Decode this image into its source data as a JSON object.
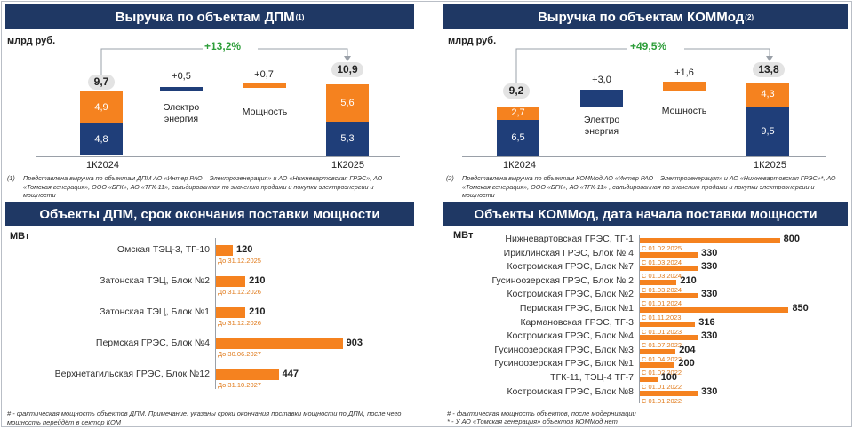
{
  "colors": {
    "navy": "#1f3864",
    "orange": "#f5821f",
    "blue": "#1f3e79",
    "green": "#2e9e3a",
    "gray": "#e3e3e3"
  },
  "dpm_revenue": {
    "title": "Выручка по объектам ДПМ",
    "title_sup": "(1)",
    "unit": "млрд руб.",
    "growth": "+13,2%",
    "chart_data": {
      "type": "bar",
      "categories": [
        "1К2024",
        "1К2025"
      ],
      "series": [
        {
          "name": "Электроэнергия",
          "values": [
            4.8,
            5.3
          ]
        },
        {
          "name": "Мощность",
          "values": [
            4.9,
            5.6
          ]
        }
      ],
      "totals": [
        9.7,
        10.9
      ],
      "bridge": [
        {
          "label": "Электро энергия",
          "delta": 0.5
        },
        {
          "label": "Мощность",
          "delta": 0.7
        }
      ]
    },
    "labels": {
      "cat1": "1К2024",
      "cat2": "1К2025",
      "total1": "9,7",
      "total2": "10,9",
      "b1_orange": "4,9",
      "b1_navy": "4,8",
      "b2_orange": "5,6",
      "b2_navy": "5,3",
      "delta1": "+0,5",
      "delta2": "+0,7",
      "legend1_line1": "Электро",
      "legend1_line2": "энергия",
      "legend2": "Мощность"
    },
    "footnote_num": "(1)",
    "footnote": "Представлена выручка по объектам ДПМ АО «Интер РАО – Электрогенерация» и АО «Нижневартовская ГРЭС», АО «Томская генерация», ООО «БГК», АО «ТГК-11», сальдированная по значению продажи и покупки электроэнергии и мощности"
  },
  "kommod_revenue": {
    "title": "Выручка по объектам КОММод",
    "title_sup": "(2)",
    "unit": "млрд руб.",
    "growth": "+49,5%",
    "chart_data": {
      "type": "bar",
      "categories": [
        "1К2024",
        "1К2025"
      ],
      "series": [
        {
          "name": "Электроэнергия",
          "values": [
            6.5,
            9.5
          ]
        },
        {
          "name": "Мощность",
          "values": [
            2.7,
            4.3
          ]
        }
      ],
      "totals": [
        9.2,
        13.8
      ],
      "bridge": [
        {
          "label": "Электро энергия",
          "delta": 3.0
        },
        {
          "label": "Мощность",
          "delta": 1.6
        }
      ]
    },
    "labels": {
      "cat1": "1К2024",
      "cat2": "1К2025",
      "total1": "9,2",
      "total2": "13,8",
      "b1_orange": "2,7",
      "b1_navy": "6,5",
      "b2_orange": "4,3",
      "b2_navy": "9,5",
      "delta1": "+3,0",
      "delta2": "+1,6",
      "legend1_line1": "Электро",
      "legend1_line2": "энергия",
      "legend2": "Мощность"
    },
    "footnote_num": "(2)",
    "footnote": "Представлена выручка по объектам КОММод АО «Интер РАО – Электрогенерация» и АО «Нижневартовская ГРЭС»*, АО «Томская генерация», ООО «БГК», АО «ТГК-11» , сальдированная по значению продажи и покупки электроэнергии и мощности"
  },
  "dpm_objects": {
    "title": "Объекты ДПМ, срок окончания поставки мощности",
    "unit": "МВт",
    "chart_data": {
      "type": "bar",
      "orientation": "horizontal",
      "xlabel": "МВт",
      "items": [
        {
          "name": "Омская  ТЭЦ-3, ТГ-10",
          "value": 120,
          "label": "120",
          "date": "До 31.12.2025"
        },
        {
          "name": "Затонская ТЭЦ, Блок №2",
          "value": 210,
          "label": "210",
          "date": "До 31.12.2026"
        },
        {
          "name": "Затонская ТЭЦ, Блок №1",
          "value": 210,
          "label": "210",
          "date": "До 31.12.2026"
        },
        {
          "name": "Пермская ГРЭС, Блок №4",
          "value": 903,
          "label": "903",
          "date": "До 30.06.2027"
        },
        {
          "name": "Верхнетагильская ГРЭС, Блок №12",
          "value": 447,
          "label": "447",
          "date": "До 31.10.2027"
        }
      ]
    },
    "footnote": "# - фактическая мощность объектов ДПМ. Примечание: указаны сроки окончания поставки мощности по ДПМ, после чего мощность перейдёт в сектор КОМ"
  },
  "kommod_objects": {
    "title": "Объекты КОММод, дата начала поставки мощности",
    "unit": "МВт",
    "chart_data": {
      "type": "bar",
      "orientation": "horizontal",
      "xlabel": "МВт",
      "items": [
        {
          "name": "Нижневартовская ГРЭС, ТГ-1",
          "value": 800,
          "label": "800",
          "date": "С 01.02.2025"
        },
        {
          "name": "Ириклинская ГРЭС, Блок № 4",
          "value": 330,
          "label": "330",
          "date": "С 01.03.2024"
        },
        {
          "name": "Костромская ГРЭС, Блок №7",
          "value": 330,
          "label": "330",
          "date": "С 01.03.2024"
        },
        {
          "name": "Гусиноозерская ГРЭС, Блок № 2",
          "value": 210,
          "label": "210",
          "date": "С 01.03.2024"
        },
        {
          "name": "Костромская ГРЭС, Блок №2",
          "value": 330,
          "label": "330",
          "date": "С 01.01.2024"
        },
        {
          "name": "Пермская ГРЭС, Блок №1",
          "value": 850,
          "label": "850",
          "date": "С 01.11.2023"
        },
        {
          "name": "Кармановская ГРЭС, ТГ-3",
          "value": 316,
          "label": "316",
          "date": "С 01.01.2023"
        },
        {
          "name": "Костромская ГРЭС, Блок №4",
          "value": 330,
          "label": "330",
          "date": "С 01.07.2022"
        },
        {
          "name": "Гусиноозерская ГРЭС, Блок №3",
          "value": 204,
          "label": "204",
          "date": "С 01.04.2022"
        },
        {
          "name": "Гусиноозерская ГРЭС, Блок №1",
          "value": 200,
          "label": "200",
          "date": "С 01.02.2022"
        },
        {
          "name": "ТГК-11, ТЭЦ-4 ТГ-7",
          "value": 100,
          "label": "100",
          "date": "С 01.01.2022"
        },
        {
          "name": "Костромская ГРЭС, Блок №8",
          "value": 330,
          "label": "330",
          "date": "С 01.01.2022"
        }
      ]
    },
    "footnote_line1": "# - фактическая мощность объектов, после модернизации",
    "footnote_line2": "* - У АО «Томская генерация» объектов КОММод нет"
  }
}
